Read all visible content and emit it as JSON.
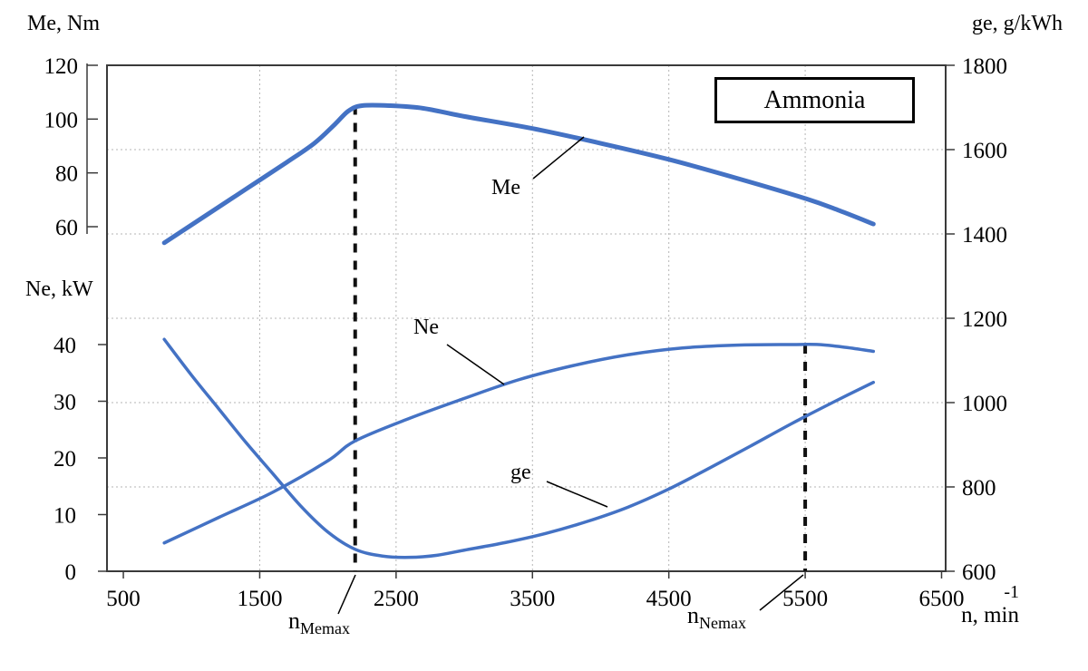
{
  "chart_data": {
    "type": "line",
    "title": "Ammonia",
    "line_color": "#4472C4",
    "grid": true,
    "legend_position": "none",
    "x_axis": {
      "label": "n, min",
      "unit_superscript": "-1",
      "ticks": [
        500,
        1500,
        2500,
        3500,
        4500,
        5500,
        6500
      ],
      "range": [
        380,
        6530
      ],
      "gridlines": [
        1500,
        2500,
        3500,
        4500,
        5500
      ]
    },
    "y_axes": {
      "me": {
        "label": "Me, Nm",
        "ticks": [
          120,
          100,
          80,
          60
        ],
        "range": [
          60,
          120
        ]
      },
      "ne": {
        "label": "Ne, kW",
        "ticks": [
          40,
          30,
          20,
          10,
          0
        ],
        "range": [
          0,
          40
        ]
      },
      "ge": {
        "label": "ge, g/kWh",
        "ticks": [
          1800,
          1600,
          1400,
          1200,
          1000,
          800,
          600
        ],
        "range": [
          600,
          1800
        ],
        "gridlines": [
          1600,
          1400,
          1200,
          1000,
          800
        ]
      }
    },
    "series": [
      {
        "name": "Me",
        "axis": "me",
        "color": "#4472C4",
        "width": 5,
        "points": [
          [
            800,
            54
          ],
          [
            1100,
            64
          ],
          [
            1400,
            74
          ],
          [
            1700,
            84
          ],
          [
            1900,
            91
          ],
          [
            2050,
            98
          ],
          [
            2150,
            103
          ],
          [
            2250,
            105
          ],
          [
            2450,
            105
          ],
          [
            2700,
            104
          ],
          [
            3000,
            101
          ],
          [
            3500,
            96.5
          ],
          [
            4000,
            91
          ],
          [
            4500,
            85
          ],
          [
            5000,
            78
          ],
          [
            5500,
            70.5
          ],
          [
            5750,
            66
          ],
          [
            6000,
            61
          ]
        ]
      },
      {
        "name": "Ne",
        "axis": "ne",
        "color": "#4472C4",
        "width": 3.5,
        "points": [
          [
            800,
            5
          ],
          [
            1200,
            9.5
          ],
          [
            1600,
            14
          ],
          [
            2000,
            19.5
          ],
          [
            2200,
            23
          ],
          [
            2600,
            27
          ],
          [
            3000,
            30.5
          ],
          [
            3400,
            33.8
          ],
          [
            3800,
            36.3
          ],
          [
            4200,
            38.2
          ],
          [
            4600,
            39.4
          ],
          [
            5000,
            39.9
          ],
          [
            5400,
            40
          ],
          [
            5600,
            40
          ],
          [
            5800,
            39.5
          ],
          [
            6000,
            38.8
          ]
        ]
      },
      {
        "name": "ge",
        "axis": "ge",
        "color": "#4472C4",
        "width": 3.5,
        "points": [
          [
            800,
            1150
          ],
          [
            1000,
            1065
          ],
          [
            1200,
            985
          ],
          [
            1400,
            905
          ],
          [
            1600,
            830
          ],
          [
            1800,
            755
          ],
          [
            2000,
            693
          ],
          [
            2200,
            652
          ],
          [
            2400,
            636
          ],
          [
            2600,
            633
          ],
          [
            2800,
            638
          ],
          [
            3000,
            650
          ],
          [
            3300,
            668
          ],
          [
            3600,
            690
          ],
          [
            3900,
            718
          ],
          [
            4200,
            752
          ],
          [
            4500,
            795
          ],
          [
            4800,
            845
          ],
          [
            5100,
            897
          ],
          [
            5400,
            950
          ],
          [
            5700,
            1000
          ],
          [
            6000,
            1048
          ]
        ]
      }
    ],
    "annotations": [
      {
        "type": "vline",
        "x": 2200,
        "from_axis": "me",
        "from_value": 105,
        "label_main": "n",
        "label_sub": "Memax"
      },
      {
        "type": "vline",
        "x": 5500,
        "from_axis": "ne",
        "from_value": 40,
        "label_main": "n",
        "label_sub": "Nemax"
      }
    ]
  }
}
